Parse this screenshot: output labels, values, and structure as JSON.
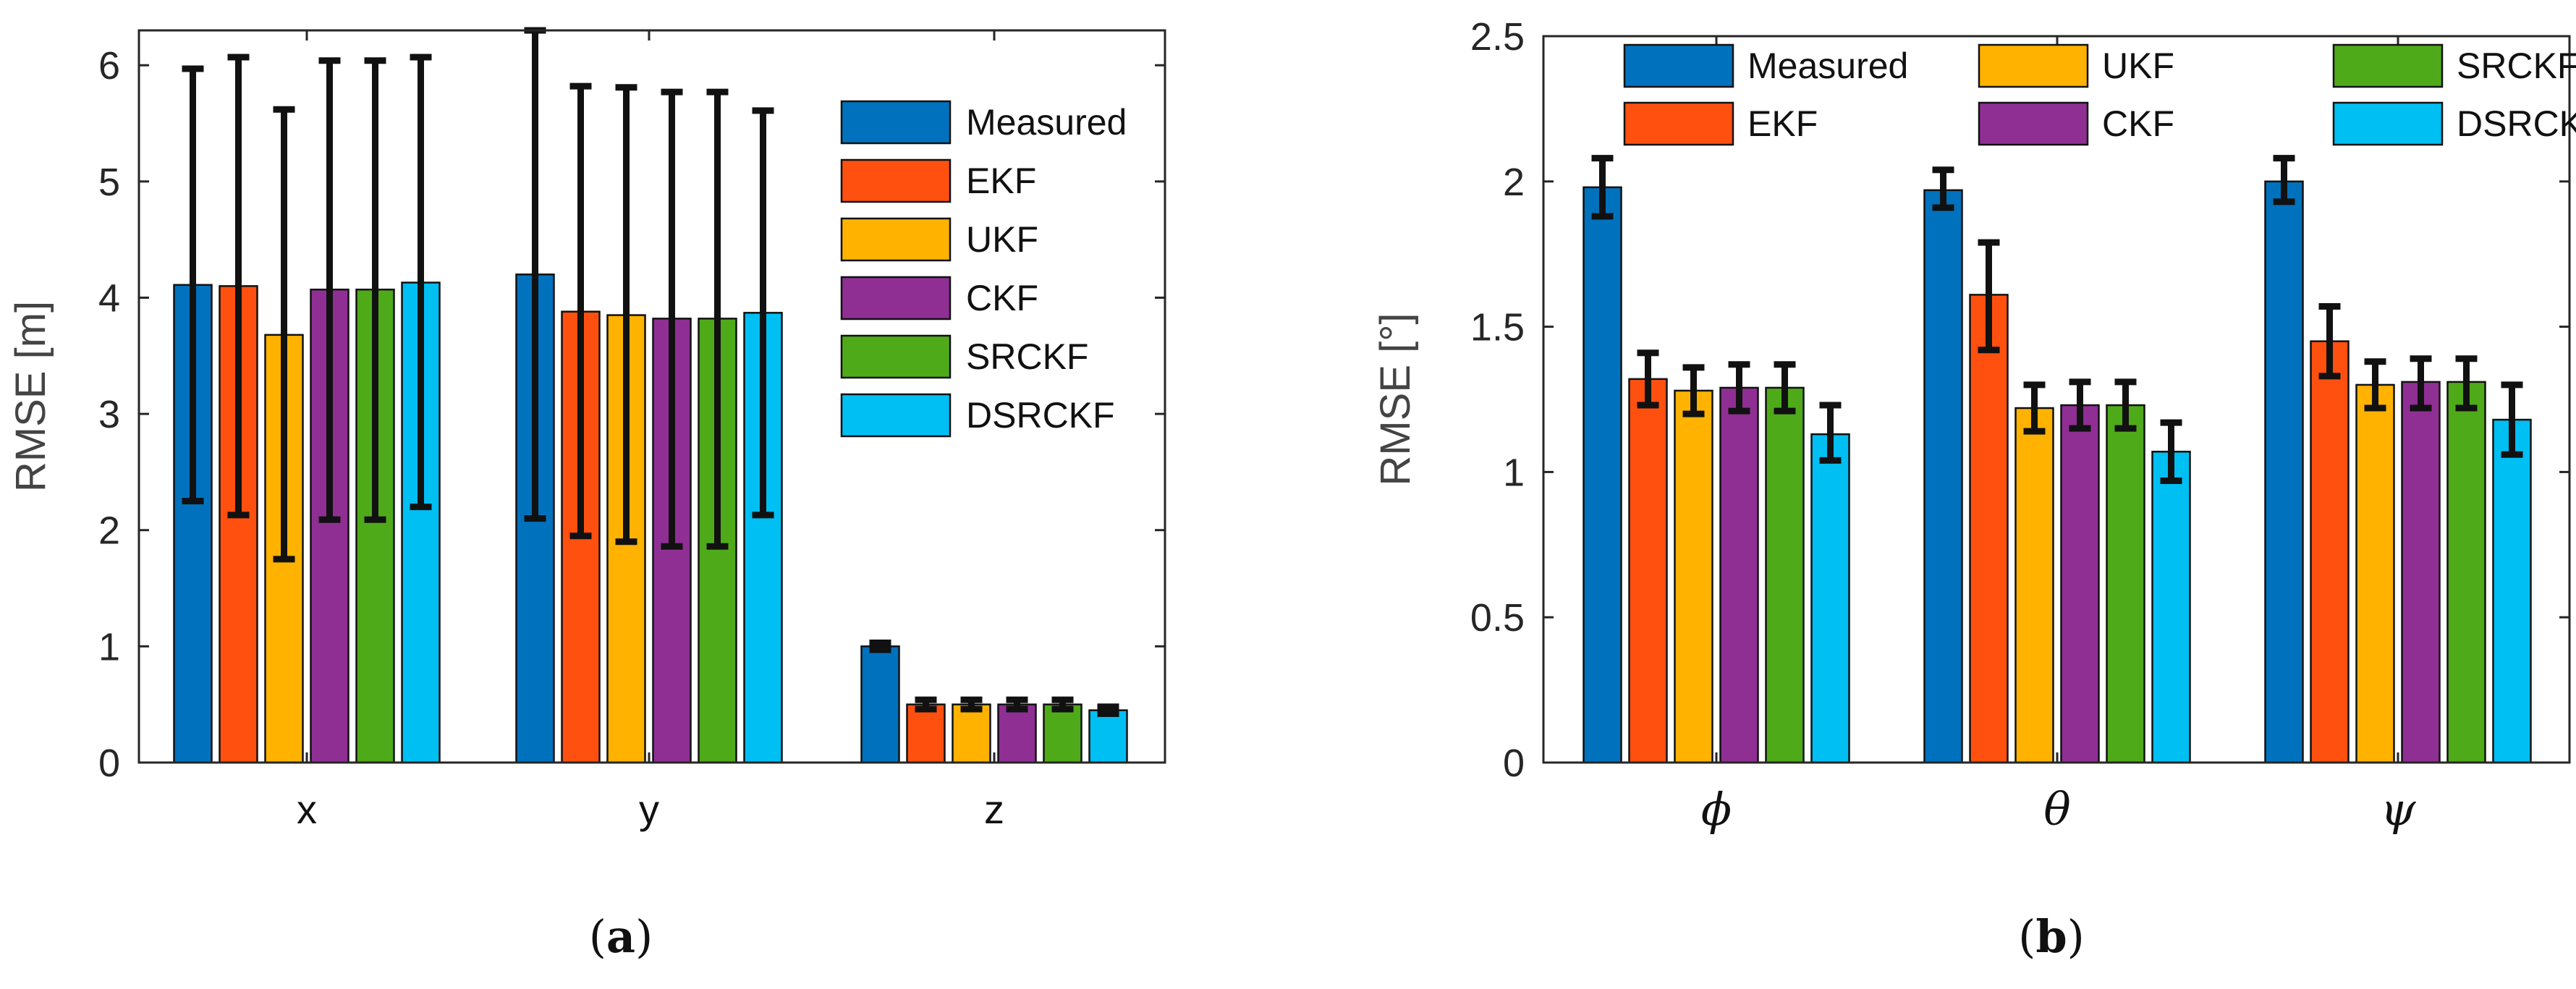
{
  "chart_data": [
    {
      "type": "bar",
      "panel_label": "a",
      "title": "",
      "xlabel": "",
      "ylabel": "RMSE [m]",
      "ylim": [
        0,
        6.3
      ],
      "yticks": [
        0,
        1,
        2,
        3,
        4,
        5,
        6
      ],
      "categories": [
        "x",
        "y",
        "z"
      ],
      "legend_position": "right",
      "legend_columns": 1,
      "series": [
        {
          "name": "Measured",
          "color": "#0072BD",
          "values": [
            4.11,
            4.2,
            1.0
          ],
          "err_low": [
            2.25,
            2.1,
            0.97
          ],
          "err_high": [
            5.97,
            6.3,
            1.03
          ]
        },
        {
          "name": "EKF",
          "color": "#FF5010",
          "values": [
            4.1,
            3.88,
            0.5
          ],
          "err_low": [
            2.13,
            1.95,
            0.46
          ],
          "err_high": [
            6.07,
            5.82,
            0.54
          ]
        },
        {
          "name": "UKF",
          "color": "#FFB300",
          "values": [
            3.68,
            3.85,
            0.5
          ],
          "err_low": [
            1.75,
            1.9,
            0.46
          ],
          "err_high": [
            5.62,
            5.81,
            0.54
          ]
        },
        {
          "name": "CKF",
          "color": "#8F2F94",
          "values": [
            4.07,
            3.82,
            0.5
          ],
          "err_low": [
            2.09,
            1.86,
            0.46
          ],
          "err_high": [
            6.04,
            5.77,
            0.54
          ]
        },
        {
          "name": "SRCKF",
          "color": "#4FAA1A",
          "values": [
            4.07,
            3.82,
            0.5
          ],
          "err_low": [
            2.09,
            1.86,
            0.46
          ],
          "err_high": [
            6.04,
            5.77,
            0.54
          ]
        },
        {
          "name": "DSRCKF",
          "color": "#00BFF3",
          "values": [
            4.13,
            3.87,
            0.45
          ],
          "err_low": [
            2.2,
            2.13,
            0.42
          ],
          "err_high": [
            6.07,
            5.61,
            0.48
          ]
        }
      ]
    },
    {
      "type": "bar",
      "panel_label": "b",
      "title": "",
      "xlabel": "",
      "ylabel": "RMSE [°]",
      "ylim": [
        0,
        2.5
      ],
      "yticks": [
        0,
        0.5,
        1,
        1.5,
        2,
        2.5
      ],
      "categories": [
        "ϕ",
        "θ",
        "ψ"
      ],
      "legend_position": "top",
      "legend_columns": 3,
      "series": [
        {
          "name": "Measured",
          "color": "#0072BD",
          "values": [
            1.98,
            1.97,
            2.0
          ],
          "err_low": [
            1.88,
            1.91,
            1.93
          ],
          "err_high": [
            2.08,
            2.04,
            2.08
          ]
        },
        {
          "name": "EKF",
          "color": "#FF5010",
          "values": [
            1.32,
            1.61,
            1.45
          ],
          "err_low": [
            1.23,
            1.42,
            1.33
          ],
          "err_high": [
            1.41,
            1.79,
            1.57
          ]
        },
        {
          "name": "UKF",
          "color": "#FFB300",
          "values": [
            1.28,
            1.22,
            1.3
          ],
          "err_low": [
            1.2,
            1.14,
            1.22
          ],
          "err_high": [
            1.36,
            1.3,
            1.38
          ]
        },
        {
          "name": "CKF",
          "color": "#8F2F94",
          "values": [
            1.29,
            1.23,
            1.31
          ],
          "err_low": [
            1.21,
            1.15,
            1.22
          ],
          "err_high": [
            1.37,
            1.31,
            1.39
          ]
        },
        {
          "name": "SRCKF",
          "color": "#4FAA1A",
          "values": [
            1.29,
            1.23,
            1.31
          ],
          "err_low": [
            1.21,
            1.15,
            1.22
          ],
          "err_high": [
            1.37,
            1.31,
            1.39
          ]
        },
        {
          "name": "DSRCKF",
          "color": "#00BFF3",
          "values": [
            1.13,
            1.07,
            1.18
          ],
          "err_low": [
            1.04,
            0.97,
            1.06
          ],
          "err_high": [
            1.23,
            1.17,
            1.3
          ]
        }
      ]
    }
  ]
}
